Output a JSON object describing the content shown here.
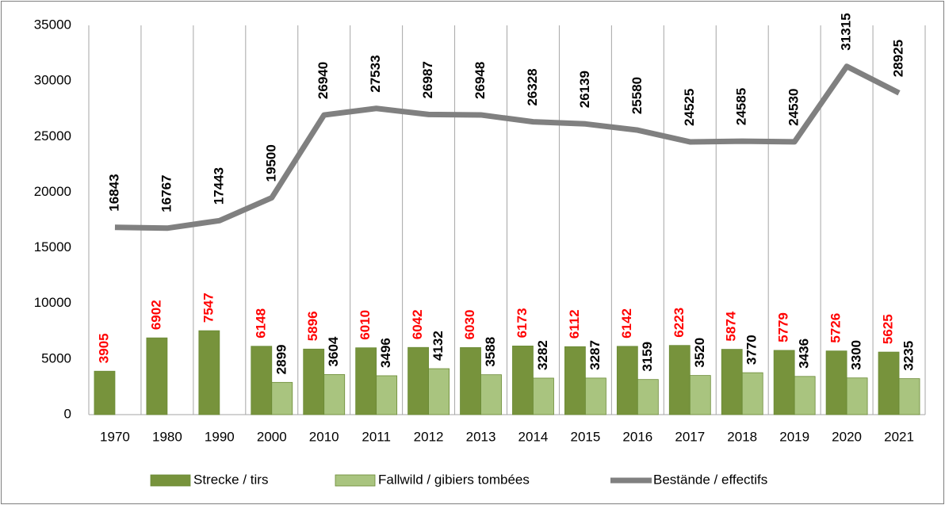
{
  "chart_data": {
    "type": "combo",
    "categories": [
      "1970",
      "1980",
      "1990",
      "2000",
      "2010",
      "2011",
      "2012",
      "2013",
      "2014",
      "2015",
      "2016",
      "2017",
      "2018",
      "2019",
      "2020",
      "2021"
    ],
    "series": [
      {
        "name": "Strecke / tirs",
        "type": "bar",
        "color": "#77933c",
        "label_color": "#ff0000",
        "values": [
          3905,
          6902,
          7547,
          6148,
          5896,
          6010,
          6042,
          6030,
          6173,
          6112,
          6142,
          6223,
          5874,
          5779,
          5726,
          5625
        ]
      },
      {
        "name": "Fallwild / gibiers tombées",
        "type": "bar",
        "color": "#a9c47f",
        "label_color": "#000000",
        "values": [
          null,
          null,
          null,
          2899,
          3604,
          3496,
          4132,
          3588,
          3282,
          3287,
          3159,
          3520,
          3770,
          3436,
          3300,
          3235
        ]
      },
      {
        "name": "Bestände / effectifs",
        "type": "line",
        "color": "#808080",
        "label_color": "#000000",
        "values": [
          16843,
          16767,
          17443,
          19500,
          26940,
          27533,
          26987,
          26948,
          26328,
          26139,
          25580,
          24525,
          24585,
          24530,
          31315,
          28925
        ]
      }
    ],
    "ylim": [
      0,
      35000
    ],
    "yticks": [
      0,
      5000,
      10000,
      15000,
      20000,
      25000,
      30000,
      35000
    ],
    "grid": "vertical",
    "legend": "bottom"
  }
}
